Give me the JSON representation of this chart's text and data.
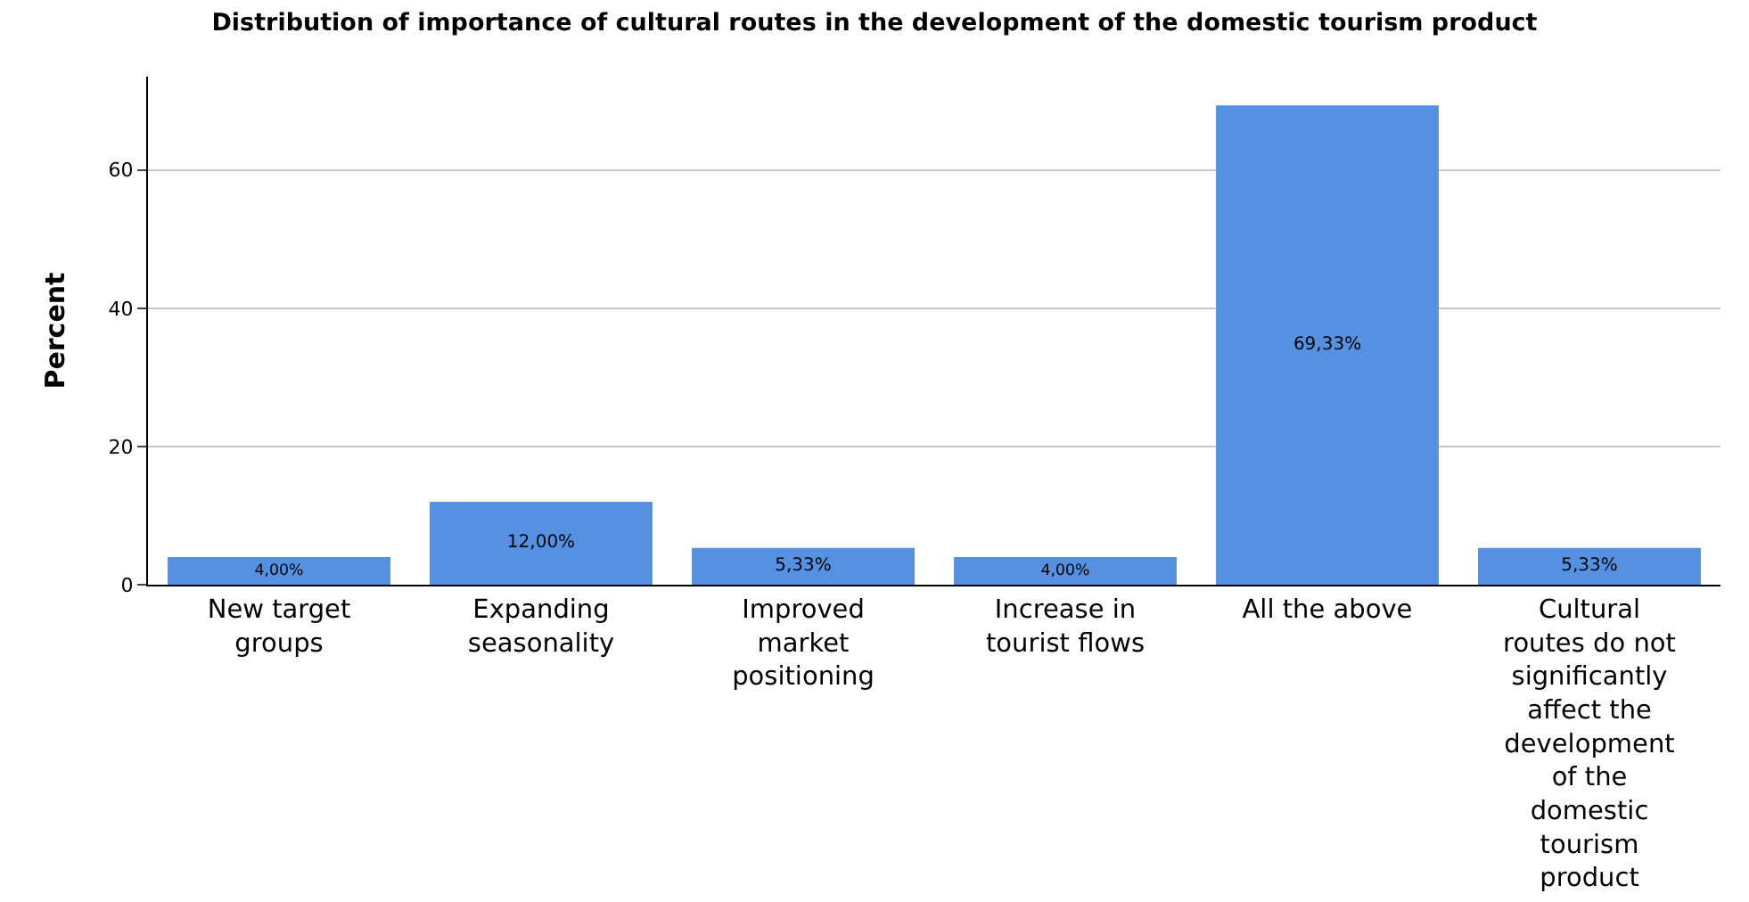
{
  "chart_data": {
    "type": "bar",
    "title": "Distribution of importance of cultural routes in the development of the domestic tourism product",
    "ylabel": "Percent",
    "categories": [
      "New target groups",
      "Expanding seasonality",
      "Improved market positioning",
      "Increase in tourist flows",
      "All the above",
      "Cultural routes do not significantly affect the development of the domestic tourism product"
    ],
    "values": [
      4,
      12,
      5.33,
      4,
      69.33,
      5.33
    ],
    "value_labels": [
      "4,00%",
      "12,00%",
      "5,33%",
      "4,00%",
      "69,33%",
      "5,33%"
    ],
    "color": "#5591e0",
    "ylim": [
      0,
      73.5
    ],
    "yticks": [
      0,
      20,
      40,
      60
    ],
    "grid": "y"
  }
}
